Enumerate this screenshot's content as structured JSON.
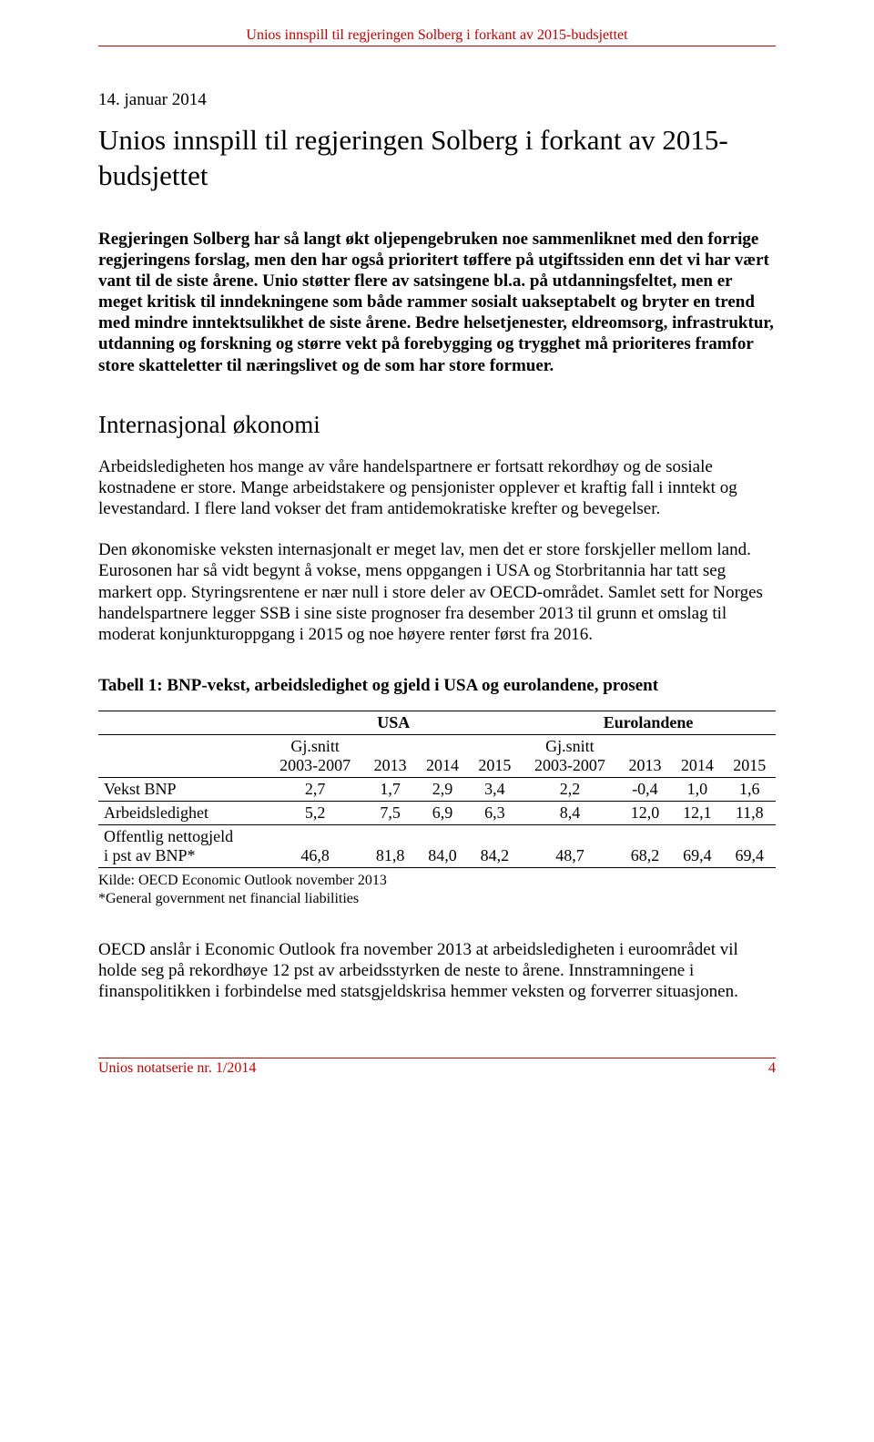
{
  "header": {
    "running_title": "Unios innspill til regjeringen Solberg i forkant av 2015-budsjettet"
  },
  "meta": {
    "date_line": "14. januar 2014"
  },
  "title": "Unios innspill til regjeringen Solberg i forkant av 2015-budsjettet",
  "lead": "Regjeringen Solberg har så langt økt oljepengebruken noe sammenliknet med den forrige regjeringens forslag, men den har også prioritert tøffere på utgiftssiden enn det vi har vært vant til de siste årene. Unio støtter flere av satsingene bl.a. på utdanningsfeltet, men er meget kritisk til inndekningene som både rammer sosialt uakseptabelt og bryter en trend med mindre inntektsulikhet de siste årene. Bedre helsetjenester, eldreomsorg, infrastruktur, utdanning og forskning og større vekt på forebygging og trygghet må prioriteres framfor store skatteletter til næringslivet og de som har store formuer.",
  "section": {
    "heading": "Internasjonal økonomi",
    "para1": "Arbeidsledigheten hos mange av våre handelspartnere er fortsatt rekordhøy og de sosiale kostnadene er store. Mange arbeidstakere og pensjonister opplever et kraftig fall i inntekt og levestandard. I flere land vokser det fram antidemokratiske krefter og bevegelser.",
    "para2": "Den økonomiske veksten internasjonalt er meget lav, men det er store forskjeller mellom land. Eurosonen har så vidt begynt å vokse, mens oppgangen i USA og Storbritannia har tatt seg markert opp. Styringsrentene er nær null i store deler av OECD-området. Samlet sett for Norges handelspartnere legger SSB i sine siste prognoser fra desember 2013 til grunn et omslag til moderat konjunkturoppgang i 2015 og noe høyere renter først fra 2016."
  },
  "table": {
    "title": "Tabell 1: BNP-vekst,  arbeidsledighet og gjeld i USA og eurolandene, prosent",
    "group_headers": [
      "USA",
      "Eurolandene"
    ],
    "col_headers": {
      "gjsnitt": "Gj.snitt",
      "period": "2003-2007",
      "y2013": "2013",
      "y2014": "2014",
      "y2015": "2015"
    },
    "rows": [
      {
        "label": "Vekst BNP",
        "usa": [
          "2,7",
          "1,7",
          "2,9",
          "3,4"
        ],
        "euro": [
          "2,2",
          "-0,4",
          "1,0",
          "1,6"
        ]
      },
      {
        "label": "Arbeidsledighet",
        "usa": [
          "5,2",
          "7,5",
          "6,9",
          "6,3"
        ],
        "euro": [
          "8,4",
          "12,0",
          "12,1",
          "11,8"
        ]
      },
      {
        "label_line1": "Offentlig nettogjeld",
        "label_line2": "i pst av BNP*",
        "usa": [
          "46,8",
          "81,8",
          "84,0",
          "84,2"
        ],
        "euro": [
          "48,7",
          "68,2",
          "69,4",
          "69,4"
        ]
      }
    ],
    "source_line1": "Kilde: OECD Economic Outlook november 2013",
    "source_line2": "*General government net financial liabilities"
  },
  "closing": "OECD anslår i Economic Outlook fra november 2013 at arbeidsledigheten i euroområdet vil holde seg på rekordhøye 12 pst av arbeidsstyrken de neste to årene. Innstramningene i finanspolitikken i forbindelse med statsgjeldskrisa hemmer veksten og forverrer situasjonen.",
  "footer": {
    "series": "Unios notatserie nr. 1/2014",
    "page_number": "4"
  },
  "colors": {
    "accent": "#c00000",
    "text": "#000000",
    "background": "#ffffff"
  }
}
